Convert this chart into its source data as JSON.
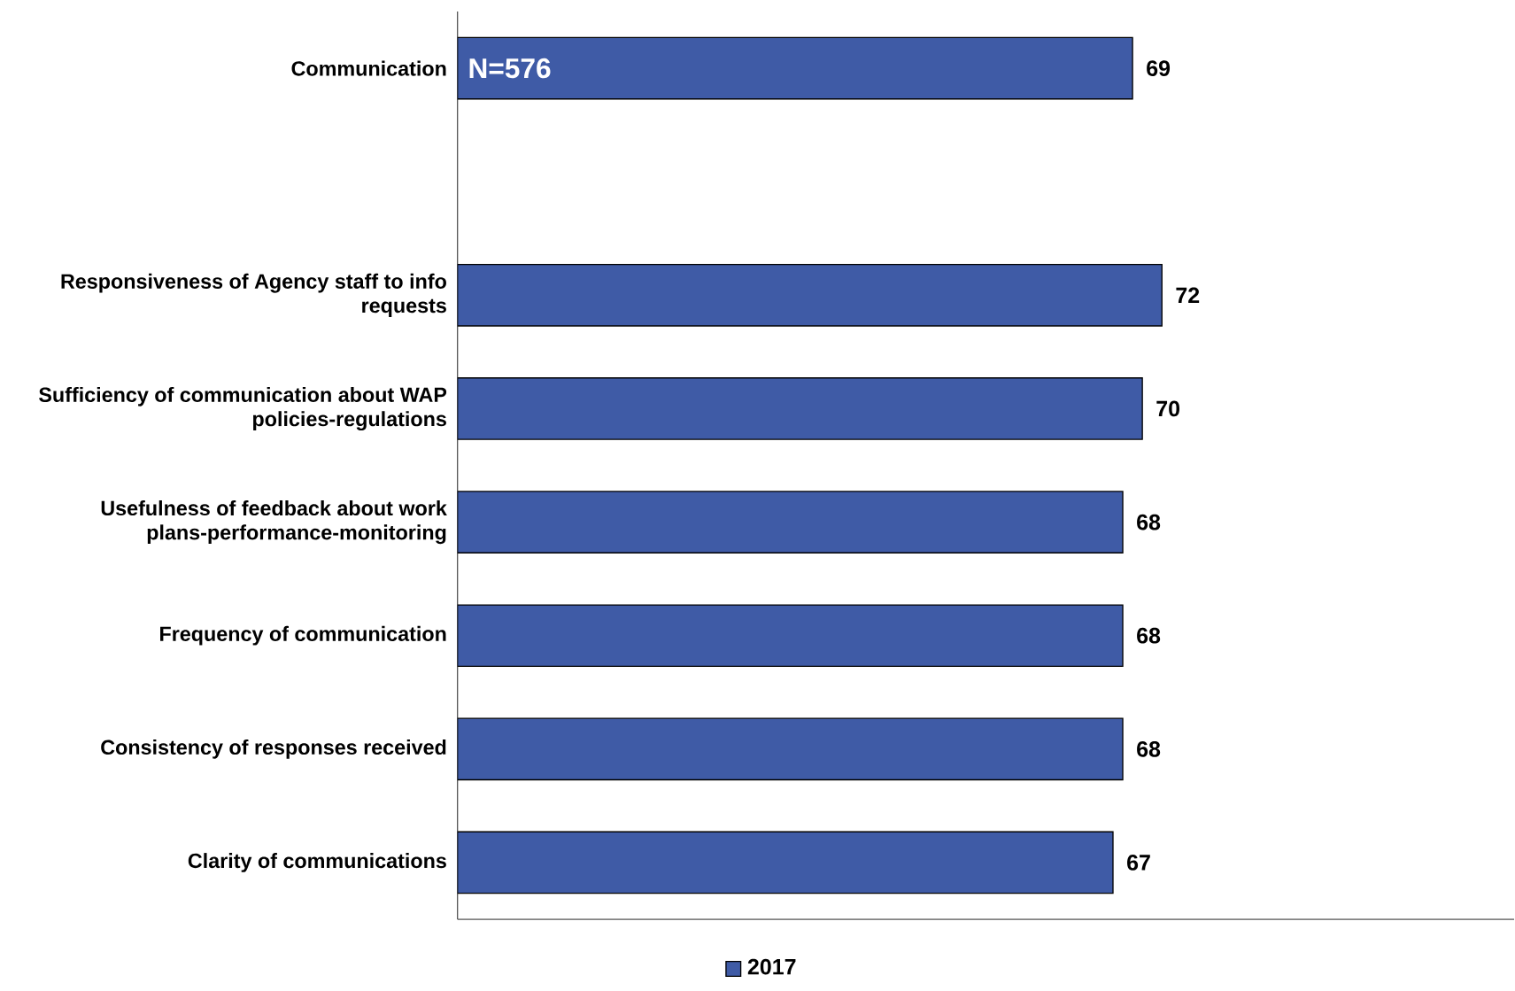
{
  "chart_data": {
    "type": "bar",
    "orientation": "horizontal",
    "categories": [
      "Communication",
      null,
      "Responsiveness of Agency staff to info requests",
      "Sufficiency of communication about WAP policies-regulations",
      "Usefulness of feedback about work plans-performance-monitoring",
      "Frequency of communication",
      "Consistency of responses received",
      "Clarity of communications"
    ],
    "series": [
      {
        "name": "2017",
        "color": "#3f5ba6",
        "values": [
          69,
          null,
          72,
          70,
          68,
          68,
          68,
          67
        ]
      }
    ],
    "xlim": [
      0,
      108
    ],
    "data_labels": true,
    "legend": "bottom",
    "tick_labels": "y",
    "annotations": [
      "N=576"
    ]
  }
}
